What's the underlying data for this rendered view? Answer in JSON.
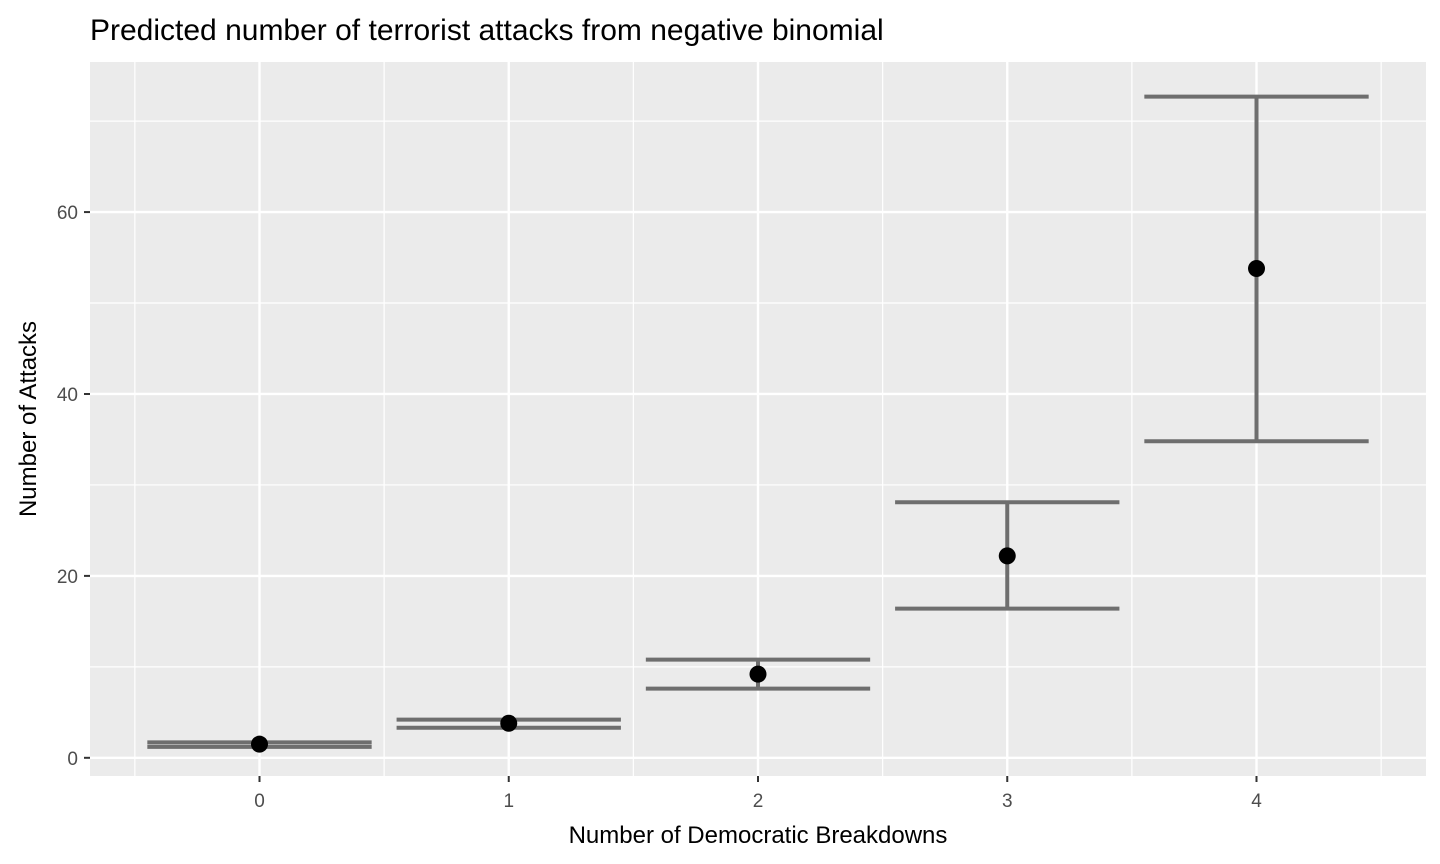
{
  "chart_data": {
    "type": "errorbar",
    "title": "Predicted number of terrorist attacks from negative binomial",
    "xlabel": "Number of Democratic Breakdowns",
    "ylabel": "Number of Attacks",
    "x": [
      0,
      1,
      2,
      3,
      4
    ],
    "x_tick_labels": [
      "0",
      "1",
      "2",
      "3",
      "4"
    ],
    "y_tick_labels": [
      "0",
      "20",
      "40",
      "60"
    ],
    "y_ticks": [
      0,
      20,
      40,
      60
    ],
    "xlim": [
      -0.68,
      4.68
    ],
    "ylim": [
      -2,
      76.5
    ],
    "estimate": [
      1.5,
      3.8,
      9.2,
      22.2,
      53.8
    ],
    "lower": [
      1.2,
      3.3,
      7.6,
      16.4,
      34.8
    ],
    "upper": [
      1.7,
      4.2,
      10.8,
      28.1,
      72.7
    ],
    "panel_background": "#ebebeb",
    "grid_color": "#ffffff",
    "errorbar_color": "#6e6e6e",
    "point_color": "#000000",
    "grid": true
  }
}
